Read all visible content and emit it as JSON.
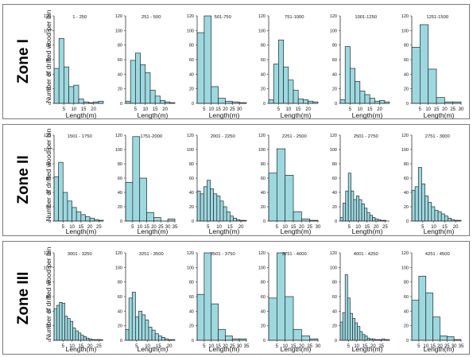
{
  "colors": {
    "bar_fill": "#9dd8df",
    "bar_stroke": "#1f2a2c",
    "axis": "#333333"
  },
  "zones": [
    {
      "name": "Zone I",
      "ylabel": "Number of drifted wood per bin",
      "xlabel": "Length(m)"
    },
    {
      "name": "Zone II",
      "ylabel": "Number of drifted wood per bin",
      "xlabel": "Length(m)"
    },
    {
      "name": "Zone III",
      "ylabel": "Number of drifted wood per bin",
      "xlabel": "Length(m)"
    }
  ],
  "chart_data": [
    {
      "type": "bar",
      "title": "1 - 250",
      "ylim": [
        0,
        120
      ],
      "yticks": [
        0,
        20,
        40,
        60,
        80,
        100,
        120
      ],
      "xlim": [
        0,
        25
      ],
      "xticks": [
        5,
        10,
        15,
        20
      ],
      "bin_width": 2.5,
      "values": [
        48,
        89,
        50,
        23,
        25,
        6,
        2,
        1,
        2,
        3
      ]
    },
    {
      "type": "bar",
      "title": "251 - 500",
      "ylim": [
        0,
        120
      ],
      "yticks": [
        0,
        20,
        40,
        60,
        80,
        100,
        120
      ],
      "xlim": [
        0,
        25
      ],
      "xticks": [
        5,
        10,
        15,
        20
      ],
      "bin_width": 2.5,
      "values": [
        3,
        59,
        69,
        53,
        42,
        18,
        10,
        4,
        2,
        1
      ]
    },
    {
      "type": "bar",
      "title": "501-750",
      "ylim": [
        0,
        120
      ],
      "yticks": [
        0,
        20,
        40,
        60,
        80,
        100,
        120
      ],
      "xlim": [
        0,
        35
      ],
      "xticks": [
        5,
        10,
        15,
        20,
        25,
        30
      ],
      "bin_width": 5,
      "values": [
        97,
        120,
        23,
        7,
        3,
        2,
        1
      ]
    },
    {
      "type": "bar",
      "title": "751-1000",
      "ylim": [
        0,
        120
      ],
      "yticks": [
        0,
        20,
        40,
        60,
        80,
        100,
        120
      ],
      "xlim": [
        0,
        25
      ],
      "xticks": [
        5,
        10,
        15,
        20
      ],
      "bin_width": 2.5,
      "values": [
        5,
        54,
        87,
        50,
        32,
        18,
        6,
        5,
        3,
        2
      ]
    },
    {
      "type": "bar",
      "title": "1001-1250",
      "ylim": [
        0,
        120
      ],
      "yticks": [
        0,
        20,
        40,
        60,
        80,
        100,
        120
      ],
      "xlim": [
        0,
        25
      ],
      "xticks": [
        5,
        10,
        15,
        20
      ],
      "bin_width": 2.5,
      "values": [
        5,
        78,
        48,
        30,
        17,
        12,
        7,
        3,
        4,
        2
      ]
    },
    {
      "type": "bar",
      "title": "1251-1500",
      "ylim": [
        0,
        120
      ],
      "yticks": [
        0,
        20,
        40,
        60,
        80,
        100,
        120
      ],
      "xlim": [
        0,
        30
      ],
      "xticks": [
        5,
        10,
        15,
        20,
        25,
        30
      ],
      "bin_width": 5,
      "values": [
        77,
        108,
        47,
        8,
        2,
        2
      ]
    },
    {
      "type": "bar",
      "title": "1501 - 1750",
      "ylim": [
        0,
        120
      ],
      "yticks": [
        0,
        20,
        40,
        60,
        80,
        100,
        120
      ],
      "xlim": [
        0,
        27.5
      ],
      "xticks": [
        5,
        10,
        15,
        20,
        25
      ],
      "bin_width": 2.5,
      "values": [
        62,
        82,
        40,
        28,
        19,
        13,
        9,
        6,
        4,
        2,
        1
      ]
    },
    {
      "type": "bar",
      "title": "1751-2000",
      "ylim": [
        0,
        120
      ],
      "yticks": [
        0,
        20,
        40,
        60,
        80,
        100,
        120
      ],
      "xlim": [
        0,
        35
      ],
      "xticks": [
        5,
        10,
        15,
        20,
        25,
        30,
        35
      ],
      "bin_width": 5,
      "values": [
        54,
        118,
        60,
        12,
        5,
        0,
        3
      ]
    },
    {
      "type": "bar",
      "title": "2001 - 2250",
      "ylim": [
        0,
        120
      ],
      "yticks": [
        0,
        20,
        40,
        60,
        80,
        100,
        120
      ],
      "xlim": [
        0,
        22.5
      ],
      "xticks": [
        5,
        10,
        15,
        20
      ],
      "bin_width": 1.5,
      "values": [
        42,
        38,
        48,
        57,
        45,
        38,
        35,
        28,
        20,
        13,
        7,
        4,
        2,
        1,
        1
      ]
    },
    {
      "type": "bar",
      "title": "2251 - 2500",
      "ylim": [
        0,
        120
      ],
      "yticks": [
        0,
        20,
        40,
        60,
        80,
        100,
        120
      ],
      "xlim": [
        0,
        30
      ],
      "xticks": [
        5,
        10,
        15,
        20,
        25,
        30
      ],
      "bin_width": 5,
      "values": [
        67,
        101,
        64,
        13,
        3,
        1
      ]
    },
    {
      "type": "bar",
      "title": "2501 - 2750",
      "ylim": [
        0,
        120
      ],
      "yticks": [
        0,
        20,
        40,
        60,
        80,
        100,
        120
      ],
      "xlim": [
        0,
        27.5
      ],
      "xticks": [
        5,
        10,
        15,
        20,
        25
      ],
      "bin_width": 1.5,
      "values": [
        5,
        25,
        42,
        67,
        42,
        30,
        35,
        30,
        24,
        18,
        12,
        8,
        5,
        3,
        2,
        1,
        1
      ]
    },
    {
      "type": "bar",
      "title": "2751 - 3000",
      "ylim": [
        0,
        120
      ],
      "yticks": [
        0,
        20,
        40,
        60,
        80,
        100,
        120
      ],
      "xlim": [
        0,
        22.5
      ],
      "xticks": [
        5,
        10,
        15,
        20
      ],
      "bin_width": 1.5,
      "values": [
        43,
        48,
        75,
        52,
        35,
        26,
        20,
        15,
        13,
        10,
        7,
        4,
        2,
        1,
        1
      ]
    },
    {
      "type": "bar",
      "title": "3001 - 3250",
      "ylim": [
        0,
        120
      ],
      "yticks": [
        0,
        20,
        40,
        60,
        80,
        100,
        120
      ],
      "xlim": [
        0,
        27.5
      ],
      "xticks": [
        5,
        10,
        15,
        20,
        25
      ],
      "bin_width": 1.5,
      "values": [
        43,
        48,
        52,
        51,
        33,
        30,
        26,
        17,
        13,
        10,
        7,
        5,
        3,
        2,
        1,
        1,
        1,
        1
      ]
    },
    {
      "type": "bar",
      "title": "3251 - 3500",
      "ylim": [
        0,
        120
      ],
      "yticks": [
        0,
        20,
        40,
        60,
        80,
        100,
        120
      ],
      "xlim": [
        0,
        22.5
      ],
      "xticks": [
        5,
        10,
        15,
        20
      ],
      "bin_width": 1.5,
      "values": [
        15,
        58,
        66,
        32,
        40,
        35,
        28,
        18,
        14,
        9,
        6,
        4,
        2,
        1,
        1
      ]
    },
    {
      "type": "bar",
      "title": "3501 - 3750",
      "ylim": [
        0,
        120
      ],
      "yticks": [
        0,
        20,
        40,
        60,
        80,
        100,
        120
      ],
      "xlim": [
        0,
        35
      ],
      "xticks": [
        5,
        10,
        15,
        20,
        25,
        30,
        35
      ],
      "bin_width": 5,
      "values": [
        63,
        120,
        50,
        15,
        6,
        2,
        2
      ]
    },
    {
      "type": "bar",
      "title": "3751 - 4000",
      "ylim": [
        0,
        120
      ],
      "yticks": [
        0,
        20,
        40,
        60,
        80,
        100,
        120
      ],
      "xlim": [
        0,
        30
      ],
      "xticks": [
        5,
        10,
        15,
        20,
        25,
        30
      ],
      "bin_width": 5,
      "values": [
        58,
        120,
        60,
        15,
        6,
        2
      ]
    },
    {
      "type": "bar",
      "title": "4001 - 4250",
      "ylim": [
        0,
        120
      ],
      "yticks": [
        0,
        20,
        40,
        60,
        80,
        100,
        120
      ],
      "xlim": [
        0,
        30
      ],
      "xticks": [
        5,
        10,
        15,
        20,
        25
      ],
      "bin_width": 1.5,
      "values": [
        25,
        38,
        90,
        58,
        37,
        30,
        24,
        19,
        12,
        8,
        6,
        3,
        2,
        2,
        1,
        1,
        1,
        2,
        1,
        1
      ]
    },
    {
      "type": "bar",
      "title": "4251 - 4500",
      "ylim": [
        0,
        120
      ],
      "yticks": [
        0,
        20,
        40,
        60,
        80,
        100,
        120
      ],
      "xlim": [
        0,
        35
      ],
      "xticks": [
        5,
        10,
        15,
        20,
        25,
        30,
        35
      ],
      "bin_width": 5,
      "values": [
        55,
        88,
        65,
        32,
        6,
        5,
        1
      ]
    }
  ]
}
